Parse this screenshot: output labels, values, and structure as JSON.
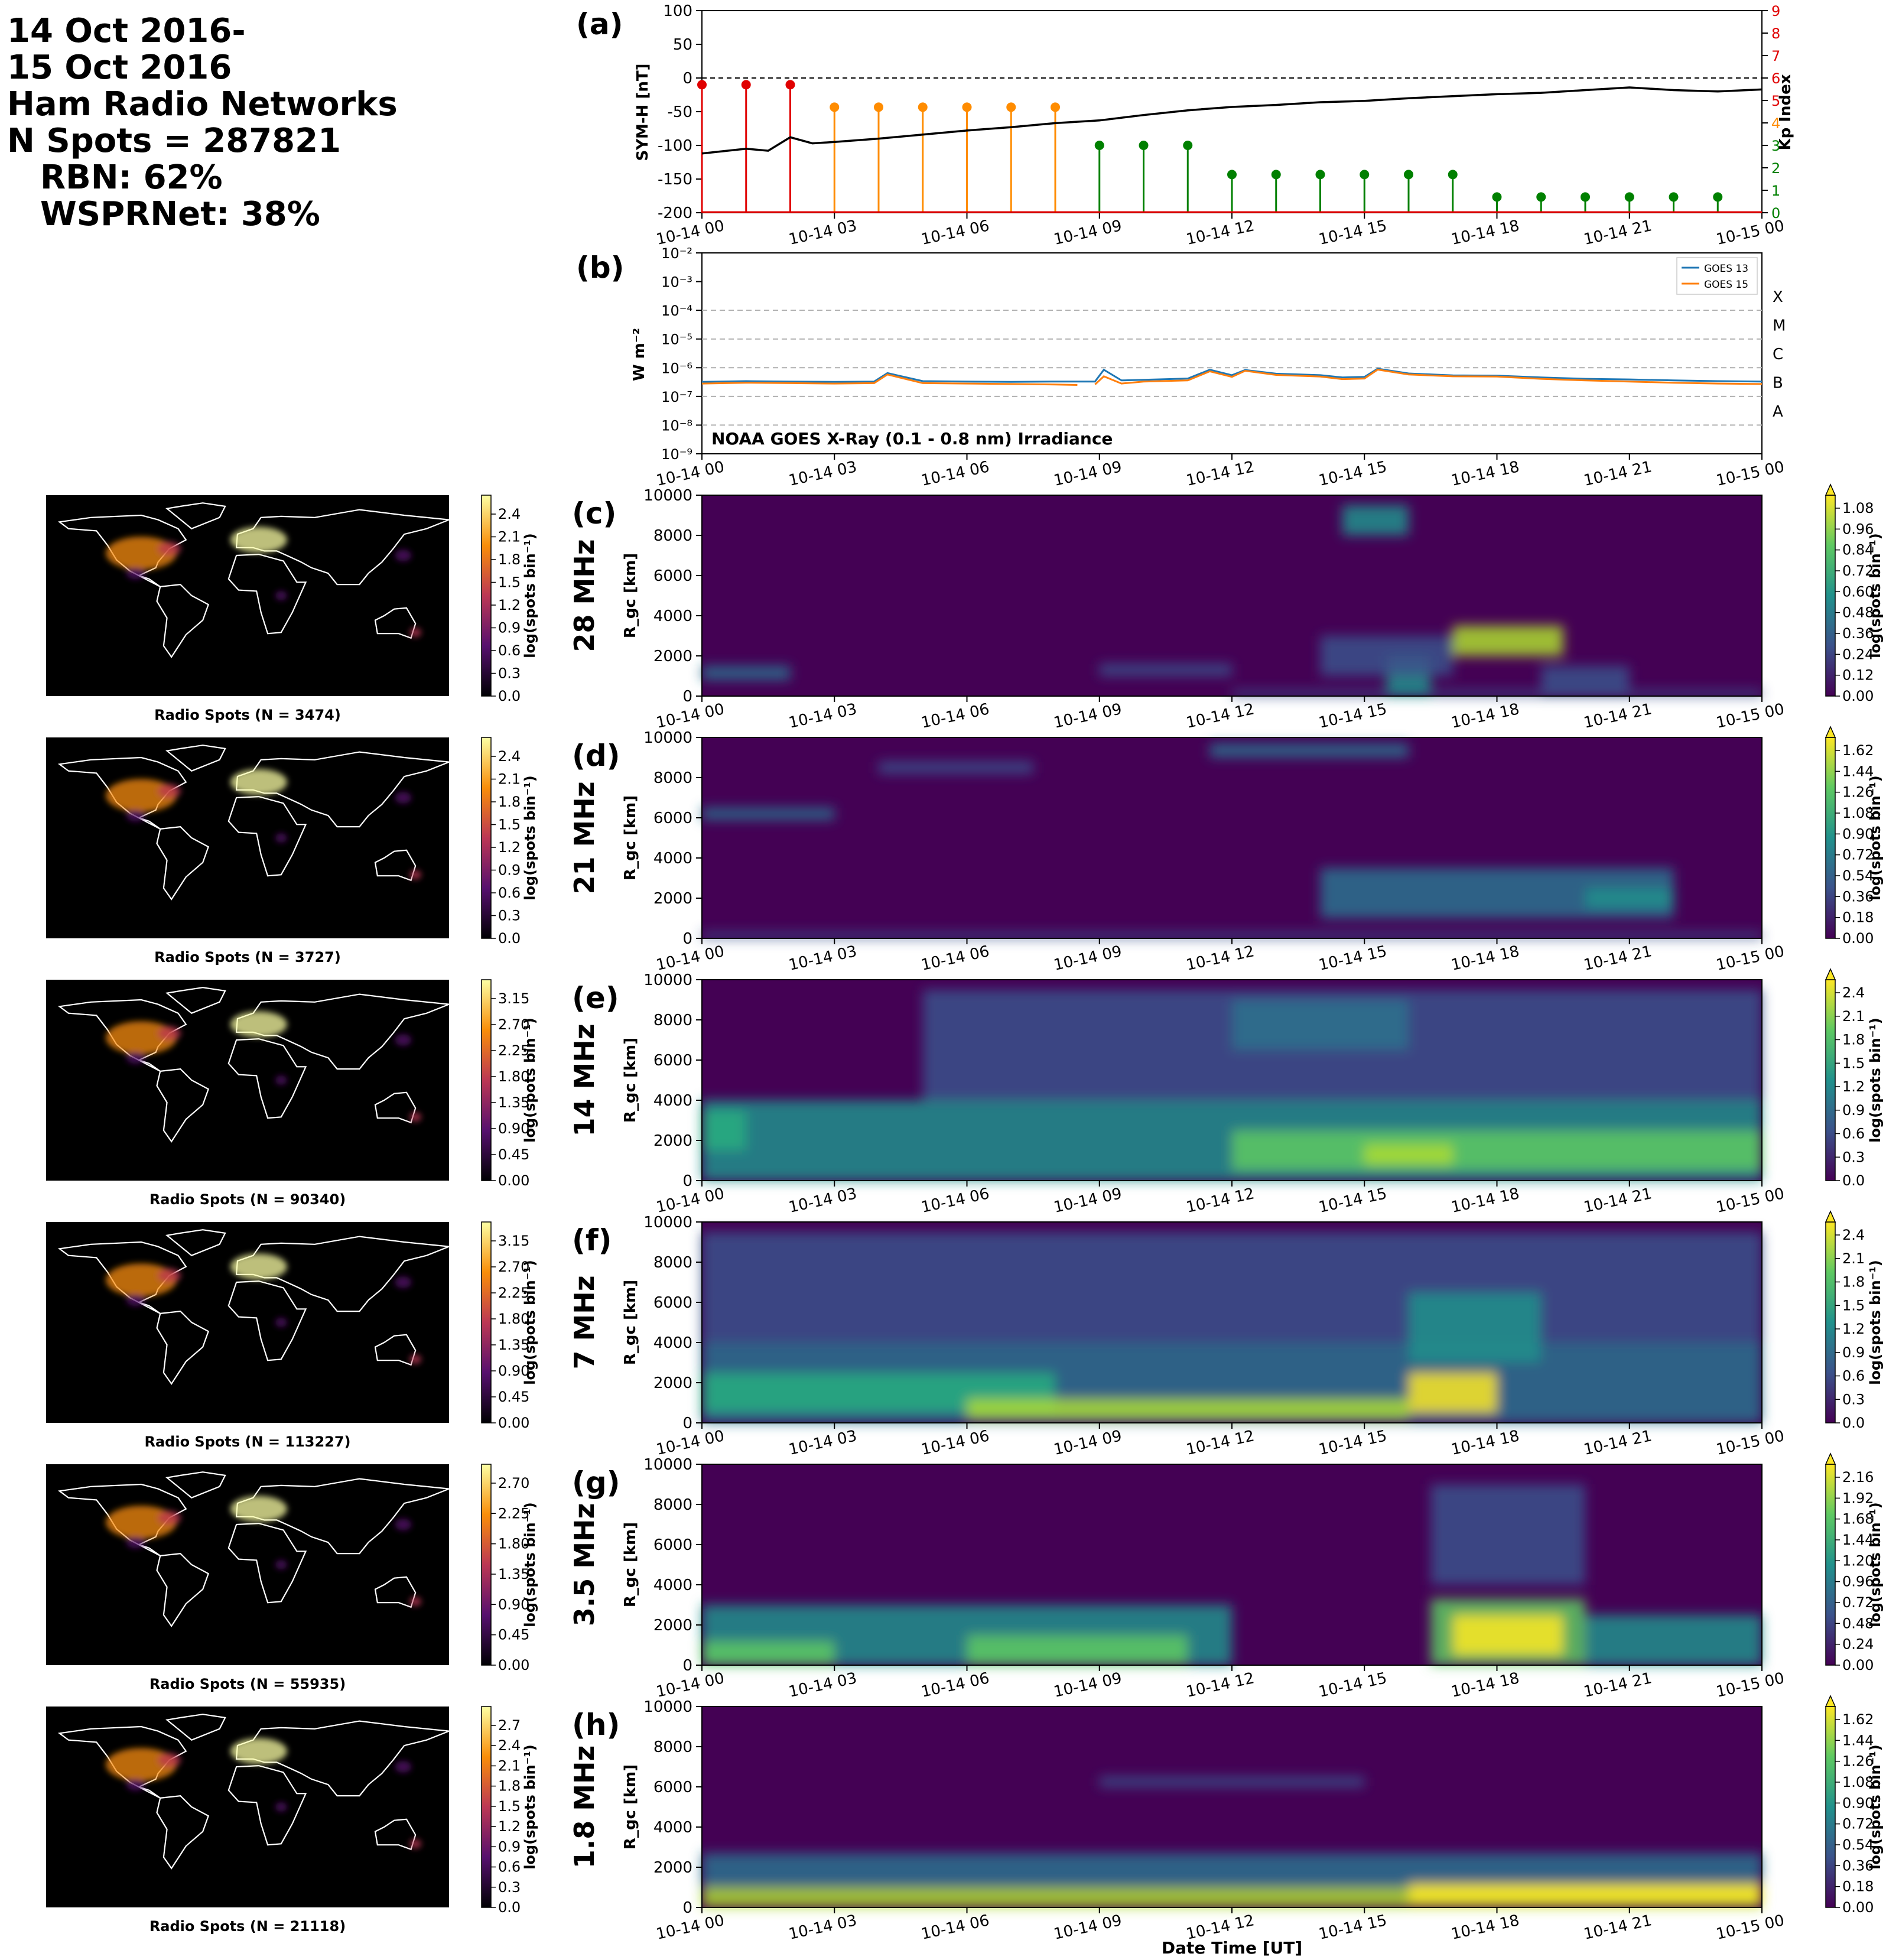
{
  "header": {
    "line1": "14 Oct 2016-",
    "line2": "15 Oct 2016",
    "line3": "Ham Radio Networks",
    "line4": "N Spots = 287821",
    "line5": "RBN: 62%",
    "line6": "WSPRNet: 38%"
  },
  "time_ticks": [
    "10-14 00",
    "10-14 03",
    "10-14 06",
    "10-14 09",
    "10-14 12",
    "10-14 15",
    "10-14 18",
    "10-14 21",
    "10-15 00"
  ],
  "xlabel": "Date Time [UT]",
  "colors": {
    "viridis_low": "#440154",
    "viridis_high": "#fde725",
    "goes13": "#1f77b4",
    "goes15": "#ff7f0e",
    "kp_high": "#e00000",
    "kp_mid": "#ff8c00",
    "kp_low": "#008000"
  },
  "chart_data": [
    {
      "panel": "(a)",
      "type": "line",
      "ylabel": "SYM-H [nT]",
      "ylim": [
        -200,
        100
      ],
      "yticks": [
        "100",
        "50",
        "0",
        "-50",
        "-100",
        "-150",
        "-200"
      ],
      "y2label": "Kp Index",
      "y2lim": [
        0,
        9
      ],
      "y2ticks": [
        "0",
        "1",
        "2",
        "3",
        "4",
        "5",
        "6",
        "7",
        "8",
        "9"
      ],
      "symh": {
        "x_hours": [
          0,
          1,
          1.5,
          2,
          2.5,
          3,
          4,
          5,
          6,
          7,
          8,
          9,
          10,
          11,
          12,
          13,
          14,
          15,
          16,
          17,
          18,
          19,
          20,
          21,
          22,
          23,
          24
        ],
        "y": [
          -112,
          -105,
          -108,
          -88,
          -97,
          -95,
          -90,
          -84,
          -78,
          -73,
          -67,
          -63,
          -55,
          -48,
          -43,
          -40,
          -36,
          -34,
          -30,
          -27,
          -24,
          -22,
          -18,
          -14,
          -18,
          -20,
          -17
        ]
      },
      "kp": {
        "x_hours": [
          0,
          1,
          2,
          3,
          4,
          5,
          6,
          7,
          8,
          9,
          10,
          11,
          12,
          13,
          14,
          15,
          16,
          17,
          18,
          19,
          20,
          21,
          22,
          23
        ],
        "values": [
          5.7,
          5.7,
          5.7,
          4.7,
          4.7,
          4.7,
          4.7,
          4.7,
          4.7,
          3,
          3,
          3,
          1.7,
          1.7,
          1.7,
          1.7,
          1.7,
          1.7,
          0.7,
          0.7,
          0.7,
          0.7,
          0.7,
          0.7
        ]
      }
    },
    {
      "panel": "(b)",
      "type": "line",
      "ylabel": "W m⁻²",
      "yscale": "log",
      "ylim": [
        1e-09,
        0.01
      ],
      "yticks": [
        "10⁻⁹",
        "10⁻⁸",
        "10⁻⁷",
        "10⁻⁶",
        "10⁻⁵",
        "10⁻⁴",
        "10⁻³",
        "10⁻²"
      ],
      "flare_classes": [
        "X",
        "M",
        "C",
        "B",
        "A"
      ],
      "annotation": "NOAA GOES X-Ray (0.1 - 0.8 nm) Irradiance",
      "legend_position": "top-right",
      "series": [
        {
          "name": "GOES 13",
          "x_hours": [
            0,
            1,
            2,
            3,
            3.9,
            4.2,
            5,
            6,
            7,
            8,
            8.9,
            9.1,
            9.5,
            10,
            11,
            11.5,
            12,
            12.3,
            13,
            14,
            14.5,
            15,
            15.3,
            16,
            17,
            18,
            19,
            20,
            21,
            22,
            23,
            24
          ],
          "y": [
            3.2e-07,
            3.4e-07,
            3.3e-07,
            3.2e-07,
            3.3e-07,
            6.5e-07,
            3.4e-07,
            3.3e-07,
            3.2e-07,
            3.3e-07,
            3.3e-07,
            8.5e-07,
            3.6e-07,
            3.8e-07,
            4.2e-07,
            8.5e-07,
            5.5e-07,
            8.3e-07,
            6.2e-07,
            5.5e-07,
            4.6e-07,
            4.8e-07,
            9.2e-07,
            6.3e-07,
            5.4e-07,
            5.3e-07,
            4.6e-07,
            4.1e-07,
            3.9e-07,
            3.6e-07,
            3.4e-07,
            3.3e-07
          ]
        },
        {
          "name": "GOES 15",
          "x_hours": [
            0,
            1,
            2,
            3,
            3.9,
            4.2,
            5,
            6,
            7,
            8,
            8.5
          ],
          "y": [
            2.8e-07,
            3e-07,
            2.9e-07,
            2.8e-07,
            2.9e-07,
            5.8e-07,
            2.9e-07,
            2.8e-07,
            2.7e-07,
            2.6e-07,
            2.5e-07
          ]
        },
        {
          "name": "GOES 15",
          "x_hours": [
            8.9,
            9.1,
            9.5,
            10,
            11,
            11.5,
            12,
            12.3,
            13,
            14,
            14.5,
            15,
            15.3,
            16,
            17,
            18,
            19,
            20,
            21,
            22,
            23,
            24
          ],
          "y": [
            2.6e-07,
            5e-07,
            2.8e-07,
            3.3e-07,
            3.6e-07,
            7.5e-07,
            4.8e-07,
            7.8e-07,
            5.6e-07,
            4.9e-07,
            4e-07,
            4.2e-07,
            8.6e-07,
            5.8e-07,
            5e-07,
            4.9e-07,
            4.1e-07,
            3.6e-07,
            3.3e-07,
            3e-07,
            2.8e-07,
            2.7e-07
          ]
        }
      ]
    },
    {
      "panel": "(c)",
      "type": "heatmap",
      "band": "28 MHz",
      "ylabel": "R_gc [km]",
      "ylim": [
        0,
        10000
      ],
      "yticks": [
        "0",
        "2000",
        "4000",
        "6000",
        "8000",
        "10000"
      ],
      "cbar_ticks": [
        "0.00",
        "0.12",
        "0.24",
        "0.36",
        "0.48",
        "0.60",
        "0.72",
        "0.84",
        "0.96",
        "1.08"
      ],
      "cbar_label": "log(spots bin⁻¹)",
      "map_title": "Radio Spots (N = 3474)",
      "map_cbar_ticks": [
        "0.0",
        "0.3",
        "0.6",
        "0.9",
        "1.2",
        "1.5",
        "1.8",
        "2.1",
        "2.4"
      ],
      "features": [
        {
          "t": [
            0,
            2
          ],
          "r": [
            800,
            1500
          ],
          "v": 0.4
        },
        {
          "t": [
            12,
            24
          ],
          "r": [
            0,
            300
          ],
          "v": 0.3
        },
        {
          "t": [
            17,
            19.5
          ],
          "r": [
            2000,
            3500
          ],
          "v": 0.9
        },
        {
          "t": [
            15.5,
            16.5
          ],
          "r": [
            0,
            2000
          ],
          "v": 0.5
        },
        {
          "t": [
            14,
            17
          ],
          "r": [
            1000,
            3000
          ],
          "v": 0.3
        },
        {
          "t": [
            14.5,
            16
          ],
          "r": [
            8000,
            9500
          ],
          "v": 0.45
        },
        {
          "t": [
            19,
            21
          ],
          "r": [
            0,
            1500
          ],
          "v": 0.25
        },
        {
          "t": [
            9,
            12
          ],
          "r": [
            1000,
            1600
          ],
          "v": 0.25
        }
      ]
    },
    {
      "panel": "(d)",
      "type": "heatmap",
      "band": "21 MHz",
      "ylabel": "R_gc [km]",
      "ylim": [
        0,
        10000
      ],
      "yticks": [
        "0",
        "2000",
        "4000",
        "6000",
        "8000",
        "10000"
      ],
      "cbar_ticks": [
        "0.00",
        "0.18",
        "0.36",
        "0.54",
        "0.72",
        "0.90",
        "1.08",
        "1.26",
        "1.44",
        "1.62"
      ],
      "cbar_label": "log(spots bin⁻¹)",
      "map_title": "Radio Spots (N = 3727)",
      "map_cbar_ticks": [
        "0.0",
        "0.3",
        "0.6",
        "0.9",
        "1.2",
        "1.5",
        "1.8",
        "2.1",
        "2.4"
      ],
      "features": [
        {
          "t": [
            0,
            3
          ],
          "r": [
            5900,
            6500
          ],
          "v": 0.35
        },
        {
          "t": [
            0,
            24
          ],
          "r": [
            0,
            300
          ],
          "v": 0.25
        },
        {
          "t": [
            14,
            22
          ],
          "r": [
            1000,
            3500
          ],
          "v": 0.4
        },
        {
          "t": [
            11.5,
            16
          ],
          "r": [
            9000,
            9700
          ],
          "v": 0.4
        },
        {
          "t": [
            4,
            7.5
          ],
          "r": [
            8200,
            8800
          ],
          "v": 0.3
        },
        {
          "t": [
            20,
            22
          ],
          "r": [
            1500,
            2500
          ],
          "v": 0.45
        }
      ]
    },
    {
      "panel": "(e)",
      "type": "heatmap",
      "band": "14 MHz",
      "ylabel": "R_gc [km]",
      "ylim": [
        0,
        10000
      ],
      "yticks": [
        "0",
        "2000",
        "4000",
        "6000",
        "8000",
        "10000"
      ],
      "cbar_ticks": [
        "0.0",
        "0.3",
        "0.6",
        "0.9",
        "1.2",
        "1.5",
        "1.8",
        "2.1",
        "2.4"
      ],
      "cbar_label": "log(spots bin⁻¹)",
      "map_title": "Radio Spots (N = 90340)",
      "map_cbar_ticks": [
        "0.00",
        "0.45",
        "0.90",
        "1.35",
        "1.80",
        "2.25",
        "2.70",
        "3.15"
      ],
      "features": [
        {
          "t": [
            0,
            24
          ],
          "r": [
            0,
            4000
          ],
          "v": 0.45
        },
        {
          "t": [
            12,
            24
          ],
          "r": [
            500,
            2500
          ],
          "v": 0.75
        },
        {
          "t": [
            15,
            17
          ],
          "r": [
            800,
            1800
          ],
          "v": 0.9
        },
        {
          "t": [
            0,
            1
          ],
          "r": [
            1500,
            3500
          ],
          "v": 0.6
        },
        {
          "t": [
            5,
            24
          ],
          "r": [
            4000,
            9500
          ],
          "v": 0.3
        },
        {
          "t": [
            12,
            16
          ],
          "r": [
            6500,
            9000
          ],
          "v": 0.42
        }
      ]
    },
    {
      "panel": "(f)",
      "type": "heatmap",
      "band": "7 MHz",
      "ylabel": "R_gc [km]",
      "ylim": [
        0,
        10000
      ],
      "yticks": [
        "0",
        "2000",
        "4000",
        "6000",
        "8000",
        "10000"
      ],
      "cbar_ticks": [
        "0.0",
        "0.3",
        "0.6",
        "0.9",
        "1.2",
        "1.5",
        "1.8",
        "2.1",
        "2.4"
      ],
      "cbar_label": "log(spots bin⁻¹)",
      "map_title": "Radio Spots (N = 113227)",
      "map_cbar_ticks": [
        "0.00",
        "0.45",
        "0.90",
        "1.35",
        "1.80",
        "2.25",
        "2.70",
        "3.15"
      ],
      "features": [
        {
          "t": [
            0,
            24
          ],
          "r": [
            0,
            4000
          ],
          "v": 0.4
        },
        {
          "t": [
            0,
            8
          ],
          "r": [
            500,
            2500
          ],
          "v": 0.65
        },
        {
          "t": [
            6,
            16
          ],
          "r": [
            200,
            1200
          ],
          "v": 0.9
        },
        {
          "t": [
            16,
            18
          ],
          "r": [
            500,
            2500
          ],
          "v": 0.95
        },
        {
          "t": [
            0,
            24
          ],
          "r": [
            4000,
            9500
          ],
          "v": 0.22
        },
        {
          "t": [
            16,
            19
          ],
          "r": [
            3000,
            6500
          ],
          "v": 0.45
        }
      ]
    },
    {
      "panel": "(g)",
      "type": "heatmap",
      "band": "3.5 MHz",
      "ylabel": "R_gc [km]",
      "ylim": [
        0,
        10000
      ],
      "yticks": [
        "0",
        "2000",
        "4000",
        "6000",
        "8000",
        "10000"
      ],
      "cbar_ticks": [
        "0.00",
        "0.24",
        "0.48",
        "0.72",
        "0.96",
        "1.20",
        "1.44",
        "1.68",
        "1.92",
        "2.16"
      ],
      "cbar_label": "log(spots bin⁻¹)",
      "map_title": "Radio Spots (N = 55935)",
      "map_cbar_ticks": [
        "0.00",
        "0.45",
        "0.90",
        "1.35",
        "1.80",
        "2.25",
        "2.70"
      ],
      "features": [
        {
          "t": [
            0,
            12
          ],
          "r": [
            0,
            3000
          ],
          "v": 0.45
        },
        {
          "t": [
            0,
            3
          ],
          "r": [
            0,
            1200
          ],
          "v": 0.8
        },
        {
          "t": [
            6,
            11
          ],
          "r": [
            0,
            1500
          ],
          "v": 0.75
        },
        {
          "t": [
            16.5,
            20
          ],
          "r": [
            0,
            3300
          ],
          "v": 0.7
        },
        {
          "t": [
            17,
            19.5
          ],
          "r": [
            500,
            2500
          ],
          "v": 0.95
        },
        {
          "t": [
            20,
            24
          ],
          "r": [
            0,
            2500
          ],
          "v": 0.45
        },
        {
          "t": [
            16.5,
            20
          ],
          "r": [
            4000,
            9000
          ],
          "v": 0.25
        }
      ]
    },
    {
      "panel": "(h)",
      "type": "heatmap",
      "band": "1.8 MHz",
      "ylabel": "R_gc [km]",
      "ylim": [
        0,
        10000
      ],
      "yticks": [
        "0",
        "2000",
        "4000",
        "6000",
        "8000",
        "10000"
      ],
      "cbar_ticks": [
        "0.00",
        "0.18",
        "0.36",
        "0.54",
        "0.72",
        "0.90",
        "1.08",
        "1.26",
        "1.44",
        "1.62"
      ],
      "cbar_label": "log(spots bin⁻¹)",
      "map_title": "Radio Spots (N = 21118)",
      "map_cbar_ticks": [
        "0.0",
        "0.3",
        "0.6",
        "0.9",
        "1.2",
        "1.5",
        "1.8",
        "2.1",
        "2.4",
        "2.7"
      ],
      "features": [
        {
          "t": [
            0,
            24
          ],
          "r": [
            0,
            1000
          ],
          "v": 0.85
        },
        {
          "t": [
            0,
            24
          ],
          "r": [
            1000,
            2700
          ],
          "v": 0.35
        },
        {
          "t": [
            9,
            15
          ],
          "r": [
            6000,
            6500
          ],
          "v": 0.25
        },
        {
          "t": [
            16,
            24
          ],
          "r": [
            200,
            1200
          ],
          "v": 0.95
        }
      ]
    }
  ]
}
